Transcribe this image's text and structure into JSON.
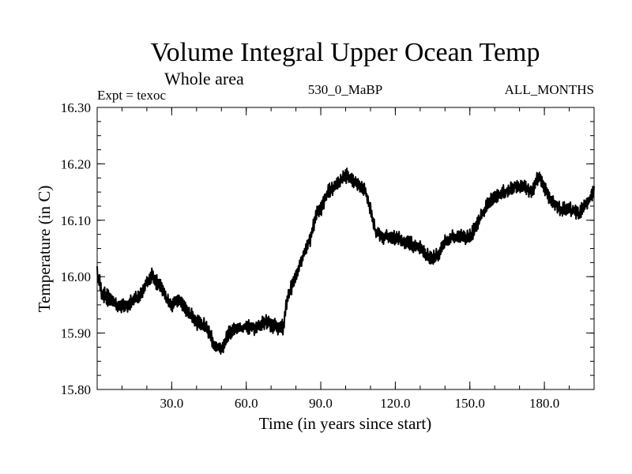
{
  "chart_data": {
    "type": "line",
    "title": "Volume Integral Upper Ocean Temp",
    "subtitle": "Whole area",
    "header_left": "Expt = texoc",
    "header_center": "530_0_MaBP",
    "header_right": "ALL_MONTHS",
    "xlabel": "Time (in years since start)",
    "ylabel": "Temperature (in C)",
    "xlim": [
      0,
      200
    ],
    "ylim": [
      15.8,
      16.3
    ],
    "x_ticks": [
      30,
      60,
      90,
      120,
      150,
      180
    ],
    "x_tick_labels": [
      "30.0",
      "60.0",
      "90.0",
      "120.0",
      "150.0",
      "180.0"
    ],
    "y_ticks": [
      15.8,
      15.9,
      16.0,
      16.1,
      16.2,
      16.3
    ],
    "y_tick_labels": [
      "15.80",
      "15.90",
      "16.00",
      "16.10",
      "16.20",
      "16.30"
    ],
    "series": [
      {
        "name": "Volume Integral Upper Ocean Temp",
        "noise_amplitude": 0.012,
        "x": [
          0,
          2,
          5,
          8,
          12,
          15,
          18,
          20,
          22,
          24,
          26,
          28,
          30,
          33,
          36,
          40,
          44,
          47,
          50,
          53,
          56,
          60,
          64,
          68,
          72,
          75,
          76,
          78,
          80,
          83,
          86,
          88,
          90,
          93,
          96,
          98,
          100,
          103,
          106,
          108,
          110,
          112,
          115,
          120,
          125,
          130,
          134,
          137,
          140,
          143,
          146,
          150,
          154,
          157,
          160,
          164,
          168,
          172,
          175,
          178,
          182,
          186,
          190,
          194,
          197,
          200
        ],
        "y": [
          16.01,
          15.97,
          15.96,
          15.95,
          15.95,
          15.96,
          15.97,
          15.99,
          16.0,
          15.99,
          15.98,
          15.96,
          15.95,
          15.96,
          15.94,
          15.92,
          15.91,
          15.88,
          15.87,
          15.9,
          15.91,
          15.91,
          15.91,
          15.92,
          15.91,
          15.91,
          15.95,
          15.98,
          16.0,
          16.04,
          16.07,
          16.11,
          16.12,
          16.15,
          16.16,
          16.17,
          16.18,
          16.17,
          16.16,
          16.15,
          16.12,
          16.08,
          16.07,
          16.07,
          16.06,
          16.05,
          16.03,
          16.04,
          16.06,
          16.07,
          16.07,
          16.07,
          16.1,
          16.13,
          16.14,
          16.15,
          16.16,
          16.16,
          16.15,
          16.18,
          16.14,
          16.12,
          16.12,
          16.11,
          16.13,
          16.15
        ]
      }
    ]
  }
}
